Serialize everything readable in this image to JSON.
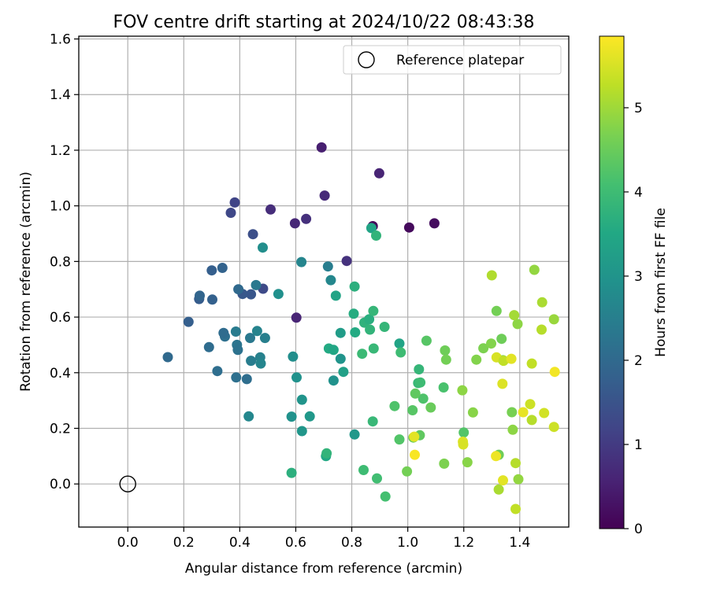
{
  "chart_data": {
    "type": "scatter",
    "title": "FOV centre drift starting at 2024/10/22 08:43:38",
    "xlabel": "Angular distance from reference (arcmin)",
    "ylabel": "Rotation from reference (arcmin)",
    "xlim": [
      -0.175,
      1.575
    ],
    "ylim": [
      -0.155,
      1.61
    ],
    "xticks": [
      0.0,
      0.2,
      0.4,
      0.6,
      0.8,
      1.0,
      1.2,
      1.4
    ],
    "xtick_labels": [
      "0.0",
      "0.2",
      "0.4",
      "0.6",
      "0.8",
      "1.0",
      "1.2",
      "1.4"
    ],
    "yticks": [
      0.0,
      0.2,
      0.4,
      0.6,
      0.8,
      1.0,
      1.2,
      1.4,
      1.6
    ],
    "ytick_labels": [
      "0.0",
      "0.2",
      "0.4",
      "0.6",
      "0.8",
      "1.0",
      "1.2",
      "1.4",
      "1.6"
    ],
    "grid": true,
    "legend": {
      "placement": "top-right",
      "entries": [
        "Reference platepar"
      ]
    },
    "reference_point": {
      "x": 0.0,
      "y": 0.0,
      "label": "Reference platepar"
    },
    "colorbar": {
      "label": "Hours from first FF file",
      "colormap": "viridis",
      "range": [
        0,
        5.85
      ],
      "ticks": [
        0,
        1,
        2,
        3,
        4,
        5
      ],
      "tick_labels": [
        "0",
        "1",
        "2",
        "3",
        "4",
        "5"
      ]
    },
    "points": [
      [
        0.875,
        0.927,
        0.1
      ],
      [
        1.005,
        0.922,
        0.15
      ],
      [
        1.095,
        0.937,
        0.2
      ],
      [
        0.692,
        1.21,
        0.5
      ],
      [
        0.898,
        1.117,
        0.6
      ],
      [
        0.703,
        1.037,
        0.7
      ],
      [
        0.51,
        0.987,
        0.75
      ],
      [
        0.637,
        0.953,
        0.8
      ],
      [
        0.597,
        0.937,
        0.65
      ],
      [
        0.602,
        0.598,
        0.6
      ],
      [
        0.782,
        0.802,
        0.85
      ],
      [
        0.382,
        1.012,
        1.2
      ],
      [
        0.368,
        0.975,
        1.25
      ],
      [
        0.447,
        0.898,
        1.4
      ],
      [
        0.483,
        0.702,
        1.3
      ],
      [
        0.44,
        0.682,
        1.55
      ],
      [
        0.41,
        0.683,
        1.6
      ],
      [
        0.3,
        0.768,
        1.75
      ],
      [
        0.338,
        0.777,
        1.85
      ],
      [
        0.255,
        0.665,
        1.7
      ],
      [
        0.257,
        0.677,
        1.9
      ],
      [
        0.302,
        0.663,
        1.8
      ],
      [
        0.217,
        0.583,
        1.75
      ],
      [
        0.143,
        0.456,
        2.0
      ],
      [
        0.29,
        0.492,
        2.05
      ],
      [
        0.395,
        0.7,
        2.0
      ],
      [
        0.347,
        0.53,
        2.15
      ],
      [
        0.342,
        0.543,
        2.05
      ],
      [
        0.39,
        0.5,
        2.25
      ],
      [
        0.393,
        0.482,
        2.2
      ],
      [
        0.386,
        0.548,
        2.4
      ],
      [
        0.437,
        0.525,
        2.35
      ],
      [
        0.32,
        0.406,
        2.1
      ],
      [
        0.387,
        0.383,
        2.15
      ],
      [
        0.425,
        0.377,
        2.1
      ],
      [
        0.44,
        0.443,
        2.45
      ],
      [
        0.473,
        0.455,
        2.55
      ],
      [
        0.475,
        0.433,
        2.65
      ],
      [
        0.462,
        0.55,
        2.6
      ],
      [
        0.458,
        0.715,
        2.35
      ],
      [
        0.49,
        0.525,
        2.5
      ],
      [
        0.432,
        0.243,
        2.7
      ],
      [
        0.482,
        0.85,
        2.85
      ],
      [
        0.538,
        0.683,
        2.9
      ],
      [
        0.62,
        0.798,
        2.65
      ],
      [
        0.715,
        0.782,
        2.45
      ],
      [
        0.725,
        0.733,
        2.7
      ],
      [
        0.743,
        0.677,
        3.4
      ],
      [
        0.59,
        0.458,
        2.85
      ],
      [
        0.603,
        0.383,
        2.95
      ],
      [
        0.585,
        0.242,
        2.95
      ],
      [
        0.622,
        0.303,
        3.0
      ],
      [
        0.622,
        0.19,
        3.05
      ],
      [
        0.65,
        0.243,
        3.1
      ],
      [
        0.735,
        0.372,
        2.95
      ],
      [
        0.76,
        0.45,
        3.0
      ],
      [
        0.76,
        0.543,
        3.2
      ],
      [
        0.77,
        0.403,
        3.3
      ],
      [
        0.718,
        0.487,
        3.55
      ],
      [
        0.735,
        0.482,
        3.45
      ],
      [
        0.812,
        0.545,
        3.55
      ],
      [
        0.807,
        0.612,
        3.6
      ],
      [
        0.81,
        0.71,
        3.7
      ],
      [
        0.845,
        0.58,
        3.75
      ],
      [
        0.865,
        0.555,
        3.8
      ],
      [
        0.862,
        0.592,
        3.65
      ],
      [
        0.877,
        0.622,
        3.85
      ],
      [
        0.878,
        0.487,
        3.9
      ],
      [
        0.837,
        0.468,
        3.95
      ],
      [
        0.87,
        0.92,
        3.4
      ],
      [
        0.887,
        0.893,
        3.8
      ],
      [
        0.917,
        0.565,
        3.85
      ],
      [
        0.97,
        0.505,
        3.4
      ],
      [
        0.975,
        0.473,
        4.0
      ],
      [
        0.81,
        0.178,
        3.1
      ],
      [
        0.708,
        0.1,
        3.5
      ],
      [
        0.71,
        0.11,
        3.8
      ],
      [
        0.585,
        0.04,
        3.7
      ],
      [
        0.875,
        0.225,
        3.9
      ],
      [
        0.842,
        0.05,
        4.0
      ],
      [
        0.89,
        0.02,
        4.05
      ],
      [
        0.92,
        -0.045,
        4.1
      ],
      [
        0.953,
        0.28,
        4.2
      ],
      [
        0.97,
        0.16,
        4.25
      ],
      [
        1.017,
        0.265,
        4.3
      ],
      [
        1.043,
        0.175,
        4.4
      ],
      [
        1.02,
        0.167,
        4.5
      ],
      [
        0.997,
        0.045,
        4.6
      ],
      [
        1.04,
        0.412,
        3.85
      ],
      [
        1.037,
        0.363,
        3.9
      ],
      [
        1.045,
        0.365,
        4.0
      ],
      [
        1.055,
        0.307,
        4.2
      ],
      [
        1.027,
        0.325,
        4.4
      ],
      [
        1.067,
        0.515,
        4.3
      ],
      [
        1.082,
        0.275,
        4.5
      ],
      [
        1.128,
        0.347,
        4.15
      ],
      [
        1.133,
        0.48,
        4.55
      ],
      [
        1.137,
        0.447,
        4.6
      ],
      [
        1.13,
        0.073,
        4.7
      ],
      [
        1.2,
        0.185,
        4.25
      ],
      [
        1.195,
        0.337,
        4.85
      ],
      [
        1.213,
        0.078,
        4.8
      ],
      [
        1.233,
        0.257,
        4.8
      ],
      [
        1.245,
        0.447,
        4.75
      ],
      [
        1.27,
        0.488,
        4.7
      ],
      [
        1.298,
        0.505,
        4.75
      ],
      [
        1.317,
        0.622,
        4.6
      ],
      [
        1.335,
        0.522,
        4.55
      ],
      [
        1.34,
        0.445,
        4.7
      ],
      [
        1.372,
        0.258,
        4.65
      ],
      [
        1.375,
        0.195,
        4.85
      ],
      [
        1.392,
        0.575,
        4.85
      ],
      [
        1.395,
        0.017,
        4.9
      ],
      [
        1.38,
        0.607,
        5.05
      ],
      [
        1.385,
        0.075,
        5.2
      ],
      [
        1.385,
        -0.09,
        5.3
      ],
      [
        1.3,
        0.75,
        5.15
      ],
      [
        1.452,
        0.77,
        4.9
      ],
      [
        1.48,
        0.653,
        5.1
      ],
      [
        1.478,
        0.555,
        5.2
      ],
      [
        1.522,
        0.592,
        4.95
      ],
      [
        1.443,
        0.433,
        5.3
      ],
      [
        1.437,
        0.287,
        5.4
      ],
      [
        1.443,
        0.23,
        5.2
      ],
      [
        1.487,
        0.255,
        5.45
      ],
      [
        1.522,
        0.205,
        5.4
      ],
      [
        1.525,
        0.403,
        5.75
      ],
      [
        1.317,
        0.455,
        5.5
      ],
      [
        1.342,
        0.443,
        5.3
      ],
      [
        1.37,
        0.45,
        5.6
      ],
      [
        1.338,
        0.36,
        5.55
      ],
      [
        1.412,
        0.258,
        5.65
      ],
      [
        1.325,
        0.105,
        4.55
      ],
      [
        1.315,
        0.1,
        5.7
      ],
      [
        1.34,
        0.013,
        5.6
      ],
      [
        1.325,
        -0.02,
        5.1
      ],
      [
        1.197,
        0.152,
        5.55
      ],
      [
        1.198,
        0.142,
        5.5
      ],
      [
        1.025,
        0.105,
        5.8
      ],
      [
        1.023,
        0.17,
        5.6
      ]
    ]
  }
}
